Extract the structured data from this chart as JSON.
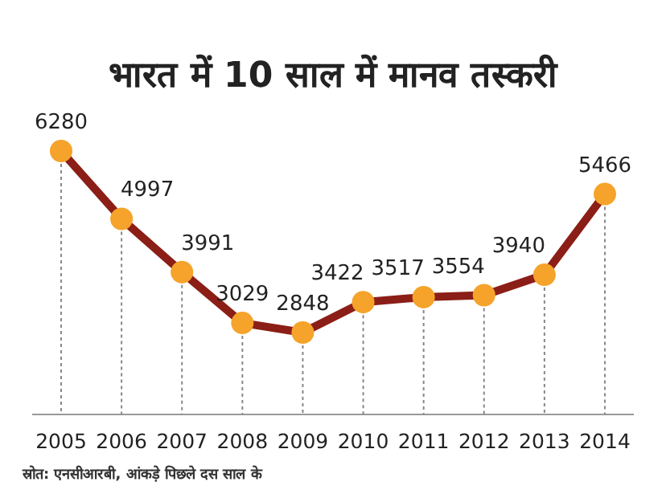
{
  "chart_data": {
    "type": "line",
    "title": "भारत में 10 साल में मानव तस्करी",
    "categories": [
      "2005",
      "2006",
      "2007",
      "2008",
      "2009",
      "2010",
      "2011",
      "2012",
      "2013",
      "2014"
    ],
    "series": [
      {
        "color": "#8b1e16",
        "values": [
          6280,
          4997,
          3991,
          3029,
          2848,
          3422,
          3517,
          3554,
          3940,
          5466
        ]
      }
    ],
    "marker": "circle",
    "data_labels": true,
    "grid": "x",
    "annotations": [
      "स्रोत: एनसीआरबी, आंकड़े पिछले दस साल के"
    ]
  }
}
